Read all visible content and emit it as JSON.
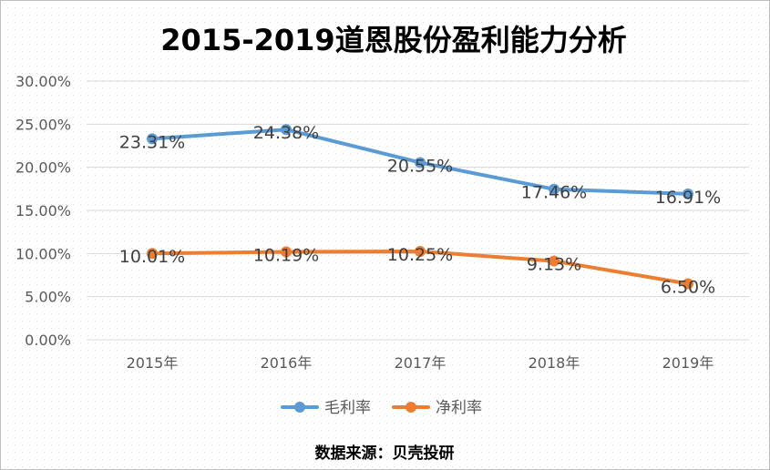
{
  "chart_data": {
    "type": "line",
    "title": "2015-2019道恩股份盈利能力分析",
    "categories": [
      "2015年",
      "2016年",
      "2017年",
      "2018年",
      "2019年"
    ],
    "series": [
      {
        "name": "毛利率",
        "color": "#5B9BD5",
        "values": [
          23.31,
          24.38,
          20.55,
          17.46,
          16.91
        ],
        "labels": [
          "23.31%",
          "24.38%",
          "20.55%",
          "17.46%",
          "16.91%"
        ]
      },
      {
        "name": "净利率",
        "color": "#ED7D31",
        "values": [
          10.01,
          10.19,
          10.25,
          9.13,
          6.5
        ],
        "labels": [
          "10.01%",
          "10.19%",
          "10.25%",
          "9.13%",
          "6.50%"
        ]
      }
    ],
    "ylim": [
      0,
      30
    ],
    "yticks": [
      "0.00%",
      "5.00%",
      "10.00%",
      "15.00%",
      "20.00%",
      "25.00%",
      "30.00%"
    ],
    "grid": true,
    "legend_position": "bottom",
    "source_note": "数据来源：贝壳投研"
  }
}
